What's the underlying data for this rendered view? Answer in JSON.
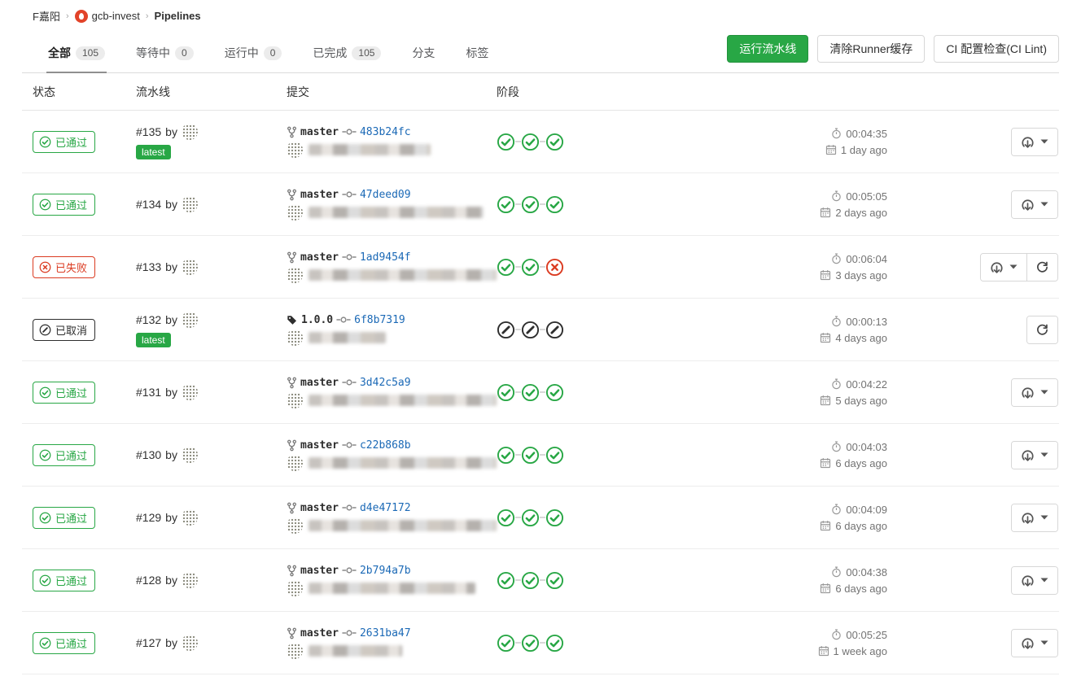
{
  "breadcrumb": {
    "group": "F嘉阳",
    "project": "gcb-invest",
    "page": "Pipelines"
  },
  "tabs": [
    {
      "label": "全部",
      "count": "105",
      "active": true
    },
    {
      "label": "等待中",
      "count": "0"
    },
    {
      "label": "运行中",
      "count": "0"
    },
    {
      "label": "已完成",
      "count": "105"
    },
    {
      "label": "分支"
    },
    {
      "label": "标签"
    }
  ],
  "toolbar": {
    "run_pipeline": "运行流水线",
    "clear_runner_cache": "清除Runner缓存",
    "ci_lint": "CI 配置检查(CI Lint)"
  },
  "table_headers": {
    "status": "状态",
    "pipeline": "流水线",
    "commit": "提交",
    "stages": "阶段"
  },
  "status_labels": {
    "passed": "已通过",
    "failed": "已失败",
    "canceled": "已取消"
  },
  "labels": {
    "by": "by",
    "latest": "latest"
  },
  "colors": {
    "green": "#28a745",
    "red": "#db3b21",
    "canceled": "#2e2e2e",
    "link_blue": "#1b69b6",
    "latest_badge": "#28a745"
  },
  "rows": [
    {
      "status": "passed",
      "pipeline_id": "#135",
      "latest": true,
      "ref_type": "branch",
      "ref": "master",
      "sha": "483b24fc",
      "msg_width": 150,
      "stages": [
        "passed",
        "passed",
        "passed"
      ],
      "duration": "00:04:35",
      "age": "1 day ago",
      "actions": [
        "download"
      ]
    },
    {
      "status": "passed",
      "pipeline_id": "#134",
      "latest": false,
      "ref_type": "branch",
      "ref": "master",
      "sha": "47deed09",
      "msg_width": 215,
      "stages": [
        "passed",
        "passed",
        "passed"
      ],
      "duration": "00:05:05",
      "age": "2 days ago",
      "actions": [
        "download"
      ]
    },
    {
      "status": "failed",
      "pipeline_id": "#133",
      "latest": false,
      "ref_type": "branch",
      "ref": "master",
      "sha": "1ad9454f",
      "msg_width": 235,
      "stages": [
        "passed",
        "passed",
        "failed"
      ],
      "duration": "00:06:04",
      "age": "3 days ago",
      "actions": [
        "download",
        "retry"
      ]
    },
    {
      "status": "canceled",
      "pipeline_id": "#132",
      "latest": true,
      "ref_type": "tag",
      "ref": "1.0.0",
      "sha": "6f8b7319",
      "msg_width": 95,
      "stages": [
        "canceled",
        "canceled",
        "canceled"
      ],
      "duration": "00:00:13",
      "age": "4 days ago",
      "actions": [
        "retry"
      ]
    },
    {
      "status": "passed",
      "pipeline_id": "#131",
      "latest": false,
      "ref_type": "branch",
      "ref": "master",
      "sha": "3d42c5a9",
      "msg_width": 235,
      "stages": [
        "passed",
        "passed",
        "passed"
      ],
      "duration": "00:04:22",
      "age": "5 days ago",
      "actions": [
        "download"
      ]
    },
    {
      "status": "passed",
      "pipeline_id": "#130",
      "latest": false,
      "ref_type": "branch",
      "ref": "master",
      "sha": "c22b868b",
      "msg_width": 235,
      "stages": [
        "passed",
        "passed",
        "passed"
      ],
      "duration": "00:04:03",
      "age": "6 days ago",
      "actions": [
        "download"
      ]
    },
    {
      "status": "passed",
      "pipeline_id": "#129",
      "latest": false,
      "ref_type": "branch",
      "ref": "master",
      "sha": "d4e47172",
      "msg_width": 255,
      "stages": [
        "passed",
        "passed",
        "passed"
      ],
      "duration": "00:04:09",
      "age": "6 days ago",
      "actions": [
        "download"
      ]
    },
    {
      "status": "passed",
      "pipeline_id": "#128",
      "latest": false,
      "ref_type": "branch",
      "ref": "master",
      "sha": "2b794a7b",
      "msg_width": 205,
      "stages": [
        "passed",
        "passed",
        "passed"
      ],
      "duration": "00:04:38",
      "age": "6 days ago",
      "actions": [
        "download"
      ]
    },
    {
      "status": "passed",
      "pipeline_id": "#127",
      "latest": false,
      "ref_type": "branch",
      "ref": "master",
      "sha": "2631ba47",
      "msg_width": 115,
      "stages": [
        "passed",
        "passed",
        "passed"
      ],
      "duration": "00:05:25",
      "age": "1 week ago",
      "actions": [
        "download"
      ]
    }
  ]
}
